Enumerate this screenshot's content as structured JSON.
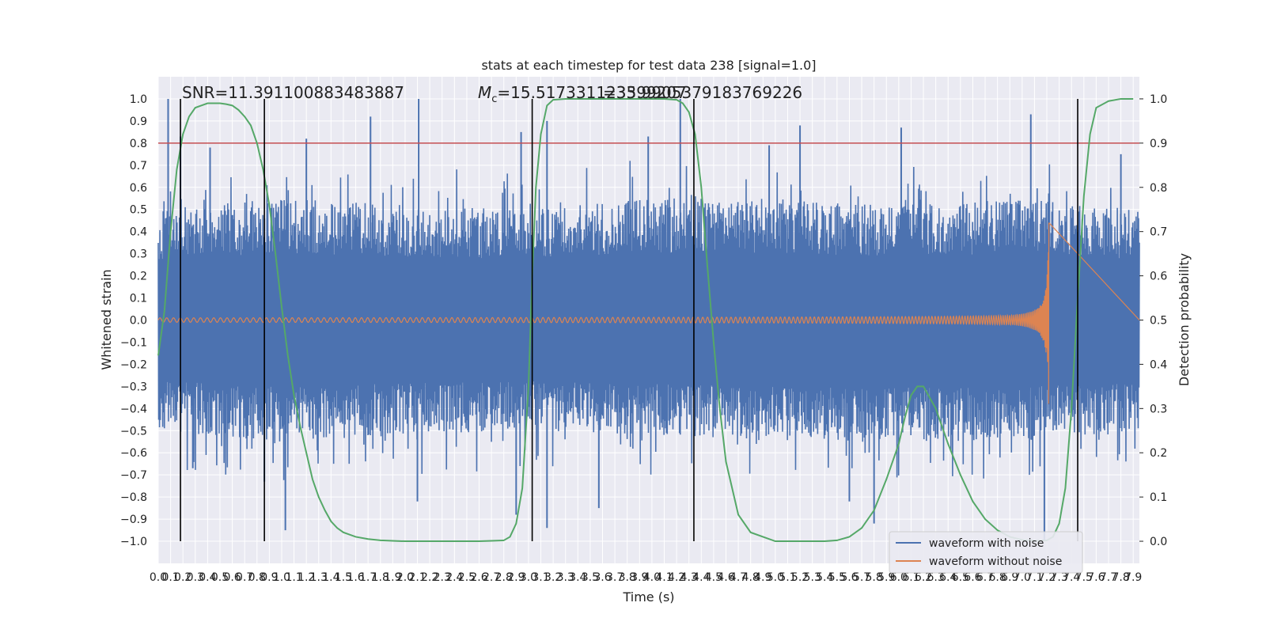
{
  "chart_data": {
    "type": "line",
    "title": "stats at each timestep for test data 238 [signal=1.0]",
    "xlabel": "Time (s)",
    "ylabel": "Whitened strain",
    "ylabel_right": "Detection probability",
    "xlim": [
      0,
      7.95
    ],
    "ylim": [
      -1.1,
      1.1
    ],
    "ylim_right": [
      -0.05,
      1.05
    ],
    "x_ticks": [
      "0.0",
      "0.1",
      "0.2",
      "0.3",
      "0.4",
      "0.5",
      "0.6",
      "0.7",
      "0.8",
      "0.9",
      "1.0",
      "1.1",
      "1.2",
      "1.3",
      "1.4",
      "1.5",
      "1.6",
      "1.7",
      "1.8",
      "1.9",
      "2.0",
      "2.1",
      "2.2",
      "2.3",
      "2.4",
      "2.5",
      "2.6",
      "2.7",
      "2.8",
      "2.9",
      "3.0",
      "3.1",
      "3.2",
      "3.3",
      "3.4",
      "3.5",
      "3.6",
      "3.7",
      "3.8",
      "3.9",
      "4.0",
      "4.1",
      "4.2",
      "4.3",
      "4.4",
      "4.5",
      "4.6",
      "4.7",
      "4.8",
      "4.9",
      "5.0",
      "5.1",
      "5.2",
      "5.3",
      "5.4",
      "5.5",
      "5.6",
      "5.7",
      "5.8",
      "5.9",
      "6.0",
      "6.1",
      "6.2",
      "6.3",
      "6.4",
      "6.5",
      "6.6",
      "6.7",
      "6.8",
      "6.9",
      "7.0",
      "7.1",
      "7.2",
      "7.3",
      "7.4",
      "7.5",
      "7.6",
      "7.7",
      "7.8",
      "7.9"
    ],
    "y_ticks_left": [
      "1.0",
      "0.9",
      "0.8",
      "0.7",
      "0.6",
      "0.5",
      "0.4",
      "0.3",
      "0.2",
      "0.1",
      "0.0",
      "−0.1",
      "−0.2",
      "−0.3",
      "−0.4",
      "−0.5",
      "−0.6",
      "−0.7",
      "−0.8",
      "−0.9",
      "−1.0"
    ],
    "y_ticks_right": [
      "1.0",
      "0.9",
      "0.8",
      "0.7",
      "0.6",
      "0.5",
      "0.4",
      "0.3",
      "0.2",
      "0.1",
      "0.0"
    ],
    "annotations": {
      "snr": "SNR=11.391100883483887",
      "mc": "M_c=15.517331123399207",
      "mc_overlap": "=35.9905379183769226"
    },
    "threshold": 0.8,
    "vertical_lines": [
      0.18,
      0.86,
      3.03,
      4.34,
      7.45
    ],
    "legend": {
      "position": "lower-right",
      "entries": [
        "waveform with noise",
        "waveform without noise"
      ]
    },
    "noise_envelope": {
      "x": [
        0.0,
        1.0,
        2.0,
        3.0,
        4.0,
        5.0,
        6.0,
        7.0,
        7.95
      ],
      "upper": [
        0.5,
        0.55,
        0.52,
        0.5,
        0.55,
        0.55,
        0.52,
        0.55,
        0.5
      ],
      "lower": [
        -0.5,
        -0.55,
        -0.52,
        -0.5,
        -0.52,
        -0.55,
        -0.55,
        -0.55,
        -0.5
      ]
    },
    "series": [
      {
        "name": "waveform with noise",
        "kind": "noise",
        "color": "#4c72b0",
        "peaks": [
          {
            "x": 0.08,
            "y": 1.0
          },
          {
            "x": 0.18,
            "y": 0.83
          },
          {
            "x": 0.28,
            "y": -0.67
          },
          {
            "x": 0.42,
            "y": 0.78
          },
          {
            "x": 0.86,
            "y": -0.73
          },
          {
            "x": 1.03,
            "y": -0.95
          },
          {
            "x": 1.2,
            "y": 0.82
          },
          {
            "x": 1.72,
            "y": 0.92
          },
          {
            "x": 2.1,
            "y": -0.82
          },
          {
            "x": 2.11,
            "y": 1.0
          },
          {
            "x": 2.9,
            "y": -0.88
          },
          {
            "x": 2.94,
            "y": 0.85
          },
          {
            "x": 3.15,
            "y": 0.9
          },
          {
            "x": 3.15,
            "y": -0.94
          },
          {
            "x": 3.57,
            "y": -0.85
          },
          {
            "x": 3.97,
            "y": 0.83
          },
          {
            "x": 4.23,
            "y": 1.0
          },
          {
            "x": 4.35,
            "y": -0.5
          },
          {
            "x": 4.95,
            "y": 0.79
          },
          {
            "x": 5.2,
            "y": 0.88
          },
          {
            "x": 5.6,
            "y": -0.82
          },
          {
            "x": 5.8,
            "y": -0.92
          },
          {
            "x": 6.02,
            "y": 0.87
          },
          {
            "x": 7.07,
            "y": 0.93
          },
          {
            "x": 7.18,
            "y": -1.0
          },
          {
            "x": 7.8,
            "y": 0.75
          }
        ]
      },
      {
        "name": "waveform without noise",
        "kind": "chirp",
        "color": "#dd8452",
        "merger_time": 7.22,
        "start_amplitude": 0.01,
        "peak_amplitude": 0.44,
        "peak_amplitude_min": -0.52
      },
      {
        "name": "detection probability",
        "kind": "probability",
        "color": "#55a868",
        "axis": "right",
        "x": [
          0.0,
          0.05,
          0.1,
          0.15,
          0.2,
          0.25,
          0.3,
          0.35,
          0.4,
          0.45,
          0.5,
          0.55,
          0.6,
          0.65,
          0.7,
          0.75,
          0.8,
          0.85,
          0.9,
          0.95,
          1.0,
          1.05,
          1.1,
          1.15,
          1.2,
          1.25,
          1.3,
          1.35,
          1.4,
          1.45,
          1.5,
          1.6,
          1.7,
          1.8,
          2.0,
          2.2,
          2.4,
          2.6,
          2.8,
          2.85,
          2.9,
          2.95,
          3.0,
          3.03,
          3.06,
          3.1,
          3.15,
          3.2,
          3.3,
          3.5,
          3.7,
          3.9,
          4.1,
          4.2,
          4.25,
          4.3,
          4.35,
          4.4,
          4.45,
          4.5,
          4.55,
          4.6,
          4.7,
          4.8,
          5.0,
          5.2,
          5.4,
          5.5,
          5.6,
          5.7,
          5.8,
          5.9,
          6.0,
          6.05,
          6.1,
          6.15,
          6.2,
          6.3,
          6.4,
          6.5,
          6.6,
          6.7,
          6.8,
          6.9,
          7.0,
          7.1,
          7.2,
          7.25,
          7.3,
          7.35,
          7.4,
          7.45,
          7.5,
          7.55,
          7.6,
          7.7,
          7.8,
          7.9
        ],
        "values": [
          0.42,
          0.52,
          0.7,
          0.84,
          0.92,
          0.96,
          0.98,
          0.985,
          0.99,
          0.99,
          0.99,
          0.988,
          0.985,
          0.975,
          0.96,
          0.94,
          0.9,
          0.84,
          0.76,
          0.65,
          0.53,
          0.42,
          0.33,
          0.26,
          0.2,
          0.14,
          0.1,
          0.07,
          0.045,
          0.03,
          0.02,
          0.01,
          0.005,
          0.002,
          0.0,
          0.0,
          0.0,
          0.0,
          0.002,
          0.01,
          0.04,
          0.12,
          0.35,
          0.6,
          0.8,
          0.92,
          0.985,
          0.998,
          1.0,
          1.0,
          1.0,
          1.0,
          1.0,
          0.998,
          0.99,
          0.97,
          0.92,
          0.8,
          0.62,
          0.45,
          0.3,
          0.18,
          0.06,
          0.02,
          0.0,
          0.0,
          0.0,
          0.002,
          0.01,
          0.03,
          0.07,
          0.14,
          0.22,
          0.28,
          0.33,
          0.35,
          0.35,
          0.3,
          0.22,
          0.15,
          0.09,
          0.05,
          0.025,
          0.01,
          0.003,
          0.001,
          0.002,
          0.01,
          0.04,
          0.12,
          0.3,
          0.55,
          0.78,
          0.92,
          0.98,
          0.995,
          1.0,
          1.0
        ]
      }
    ],
    "grid": true
  }
}
